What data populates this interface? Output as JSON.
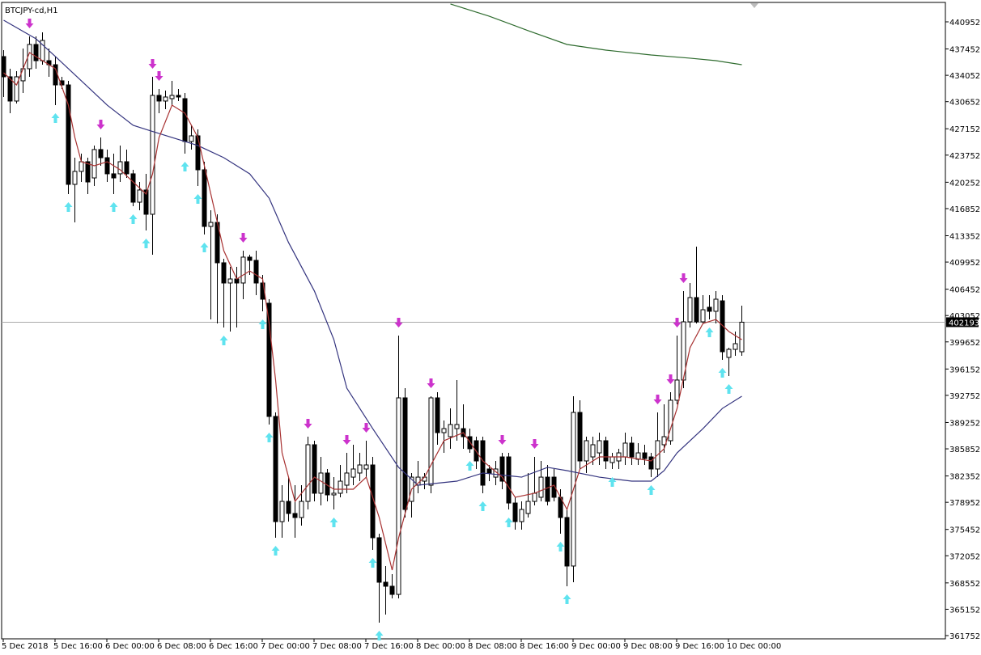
{
  "chart_data": {
    "type": "candlestick",
    "title": "BTCJPY-cd,H1",
    "categories": [
      "5 Dec 2018",
      null,
      null,
      null,
      null,
      null,
      null,
      null,
      "5 Dec 16:00",
      null,
      null,
      null,
      null,
      null,
      null,
      null,
      "6 Dec 00:00",
      null,
      null,
      null,
      null,
      null,
      null,
      null,
      "6 Dec 08:00",
      null,
      null,
      null,
      null,
      null,
      null,
      null,
      "6 Dec 16:00",
      null,
      null,
      null,
      null,
      null,
      null,
      null,
      "7 Dec 00:00",
      null,
      null,
      null,
      null,
      null,
      null,
      null,
      "7 Dec 08:00",
      null,
      null,
      null,
      null,
      null,
      null,
      null,
      "7 Dec 16:00",
      null,
      null,
      null,
      null,
      null,
      null,
      null,
      "8 Dec 00:00",
      null,
      null,
      null,
      null,
      null,
      null,
      null,
      "8 Dec 08:00",
      null,
      null,
      null,
      null,
      null,
      null,
      null,
      "8 Dec 16:00",
      null,
      null,
      null,
      null,
      null,
      null,
      null,
      "9 Dec 00:00",
      null,
      null,
      null,
      null,
      null,
      null,
      null,
      "9 Dec 08:00",
      null,
      null,
      null,
      null,
      null,
      null,
      null,
      "9 Dec 16:00",
      null,
      null,
      null,
      null,
      null,
      null,
      null,
      "10 Dec 00:00",
      null,
      null
    ],
    "open": [
      436470,
      433860,
      430730,
      433340,
      434900,
      438030,
      435940,
      435940,
      435420,
      433340,
      432810,
      419980,
      421650,
      422900,
      420810,
      424470,
      423420,
      421340,
      421340,
      422900,
      421340,
      417680,
      419250,
      416120,
      431460,
      430730,
      431040,
      431460,
      431040,
      425510,
      426240,
      421860,
      414550,
      415070,
      409860,
      407250,
      407770,
      407250,
      410590,
      410170,
      407250,
      404640,
      390030,
      376460,
      379070,
      377510,
      376990,
      379070,
      386380,
      380120,
      382730,
      379910,
      380120,
      381160,
      382200,
      382730,
      383250,
      383770,
      374380,
      368640,
      368120,
      367070,
      392430,
      379070,
      381160,
      381680,
      381160,
      392430,
      387940,
      387420,
      388460,
      388460,
      387420,
      386900,
      386900,
      383250,
      382200,
      384810,
      384810,
      378860,
      376460,
      377510,
      379070,
      379600,
      382200,
      382200,
      379600,
      376990,
      370730,
      390550,
      384290,
      384810,
      385330,
      386900,
      384080,
      384290,
      384810,
      386590,
      384500,
      385330,
      384810,
      383250,
      386380,
      386900,
      392120,
      394730,
      402240,
      405370,
      402240,
      404120,
      403600,
      404950,
      397650,
      398690,
      398380
    ],
    "high": [
      437300,
      434900,
      434590,
      437510,
      439070,
      439070,
      439600,
      437510,
      436470,
      433860,
      433340,
      423420,
      423940,
      423420,
      424990,
      426030,
      424470,
      423940,
      424990,
      424470,
      421860,
      420290,
      421340,
      433860,
      432290,
      432080,
      433340,
      432290,
      431770,
      427600,
      427070,
      422900,
      416640,
      416120,
      410380,
      409330,
      409330,
      411420,
      410900,
      411420,
      408290,
      405160,
      390550,
      381160,
      382200,
      381160,
      381160,
      387420,
      386900,
      384810,
      383250,
      382200,
      383770,
      385330,
      386380,
      385330,
      386900,
      384810,
      374900,
      370730,
      369680,
      400470,
      393680,
      382730,
      384290,
      382730,
      392640,
      393160,
      389510,
      391070,
      394730,
      391600,
      388460,
      387420,
      387420,
      383770,
      384290,
      385330,
      385330,
      379600,
      379070,
      382730,
      384810,
      384290,
      383770,
      383250,
      380640,
      378030,
      392640,
      392120,
      387420,
      387420,
      387940,
      387420,
      385330,
      385860,
      387940,
      387420,
      386590,
      386380,
      385330,
      390550,
      391600,
      393160,
      400470,
      406200,
      407250,
      411940,
      405680,
      405680,
      406200,
      405680,
      398900,
      400990,
      404330
    ],
    "low": [
      431250,
      429160,
      430410,
      431770,
      433860,
      434900,
      435420,
      433860,
      430200,
      432290,
      418730,
      415070,
      420290,
      418730,
      419770,
      422380,
      420290,
      418730,
      420290,
      420810,
      417160,
      416640,
      414030,
      410900,
      429160,
      429680,
      430200,
      430730,
      423940,
      424470,
      419770,
      413510,
      402550,
      402030,
      401510,
      400990,
      401510,
      405160,
      408290,
      405680,
      403600,
      388990,
      374380,
      374380,
      376460,
      374380,
      375940,
      378030,
      379070,
      378550,
      379070,
      378030,
      379600,
      380120,
      381160,
      381680,
      382200,
      372810,
      363420,
      364460,
      366550,
      366550,
      376990,
      376990,
      380120,
      380640,
      380120,
      386380,
      385330,
      385860,
      386900,
      385860,
      385330,
      383250,
      380120,
      381680,
      381160,
      380640,
      378030,
      375420,
      375420,
      376990,
      378550,
      379070,
      378550,
      379070,
      374900,
      368120,
      368640,
      383250,
      382730,
      383770,
      383770,
      383250,
      383250,
      383250,
      383770,
      383770,
      383770,
      383770,
      382200,
      382200,
      385330,
      386380,
      391600,
      393680,
      401510,
      402030,
      402030,
      402550,
      402030,
      397330,
      395250,
      397860,
      397860
    ],
    "close": [
      433860,
      430730,
      433860,
      434900,
      438030,
      435940,
      438550,
      435420,
      432810,
      432810,
      419980,
      421650,
      422900,
      420290,
      424470,
      423420,
      421340,
      420810,
      422900,
      421340,
      417680,
      419250,
      416120,
      431460,
      430730,
      431250,
      431460,
      431250,
      425510,
      426240,
      421860,
      414550,
      415070,
      409860,
      407250,
      407770,
      407250,
      410590,
      410170,
      407250,
      405160,
      390030,
      376460,
      379070,
      377510,
      376990,
      379070,
      386380,
      380120,
      382730,
      379910,
      380120,
      381680,
      382730,
      383250,
      383770,
      383770,
      374380,
      368640,
      368120,
      367070,
      392430,
      378030,
      382200,
      382200,
      382200,
      392430,
      387940,
      388460,
      388990,
      388990,
      387420,
      385860,
      384290,
      381160,
      382730,
      383250,
      381680,
      378860,
      376460,
      378030,
      379070,
      380120,
      382200,
      379070,
      379600,
      376990,
      370730,
      390550,
      384290,
      386900,
      386380,
      386900,
      384290,
      384810,
      385330,
      386590,
      384810,
      385330,
      384600,
      383250,
      386900,
      387420,
      392120,
      394730,
      402240,
      405370,
      402240,
      403800,
      403600,
      405160,
      398380,
      398690,
      399420,
      402193
    ],
    "up_color": "#ffffff",
    "down_color": "#000000",
    "ylim": [
      361335,
      443456
    ],
    "yticks": [
      440952,
      437452,
      434052,
      430652,
      427152,
      423752,
      420252,
      416852,
      413352,
      409952,
      406452,
      403052,
      399652,
      396152,
      392752,
      389252,
      385852,
      382352,
      378952,
      375452,
      372052,
      368552,
      365152,
      361752
    ],
    "current_price": 402193,
    "overlays": [
      {
        "color": "#2e6b2e",
        "x": [
          69,
          75,
          81,
          87,
          93,
          100,
          106,
          110,
          114
        ],
        "values": [
          443250,
          441680,
          439810,
          438030,
          437300,
          436670,
          436260,
          435940,
          435420
        ]
      },
      {
        "color": "#34347f",
        "x": [
          0,
          5,
          8,
          12,
          16,
          20,
          22,
          24,
          30,
          34,
          38,
          41,
          44,
          48,
          51,
          53,
          57,
          61,
          64,
          70,
          74,
          80,
          84,
          87,
          92,
          97,
          100,
          102,
          104,
          108,
          111,
          114
        ],
        "values": [
          441160,
          438760,
          436470,
          433340,
          430200,
          427600,
          427070,
          426550,
          424990,
          423420,
          421340,
          418200,
          412470,
          406200,
          399940,
          393680,
          388460,
          383460,
          381160,
          381680,
          382730,
          382200,
          383460,
          383040,
          382200,
          381680,
          381680,
          383040,
          385330,
          388460,
          391070,
          392640
        ]
      },
      {
        "color": "#a83232",
        "x": [
          0,
          2,
          4,
          6,
          8,
          10,
          11,
          12,
          14,
          16,
          18,
          20,
          22,
          23,
          24,
          26,
          28,
          30,
          32,
          34,
          36,
          38,
          40,
          41,
          42,
          43,
          45,
          48,
          51,
          54,
          56,
          58,
          60,
          61,
          63,
          65,
          68,
          71,
          74,
          77,
          79,
          82,
          85,
          87,
          89,
          92,
          96,
          100,
          102,
          104,
          106,
          108,
          110,
          112,
          114
        ],
        "values": [
          434380,
          432810,
          436990,
          435940,
          434900,
          430200,
          426030,
          422900,
          422380,
          422900,
          421860,
          420290,
          418730,
          421340,
          426030,
          430200,
          429160,
          426030,
          418730,
          411420,
          407770,
          408810,
          407770,
          402030,
          394730,
          385330,
          379070,
          382200,
          380640,
          380640,
          382200,
          376990,
          370200,
          374380,
          380640,
          382200,
          386900,
          387940,
          384290,
          382200,
          379600,
          380120,
          381160,
          378030,
          383250,
          384810,
          384810,
          384290,
          385860,
          391070,
          398900,
          402030,
          402550,
          400990,
          399940
        ]
      }
    ],
    "up_arrows": {
      "color": "#5fe3ef",
      "candles": [
        8,
        10,
        17,
        20,
        22,
        28,
        30,
        31,
        34,
        40,
        41,
        42,
        51,
        57,
        58,
        72,
        74,
        78,
        86,
        87,
        94,
        100,
        109,
        111,
        112
      ]
    },
    "down_arrows": {
      "color": "#cc33cc",
      "candles": [
        4,
        15,
        23,
        24,
        37,
        47,
        53,
        56,
        61,
        66,
        77,
        82,
        101,
        103,
        104,
        105
      ]
    }
  }
}
